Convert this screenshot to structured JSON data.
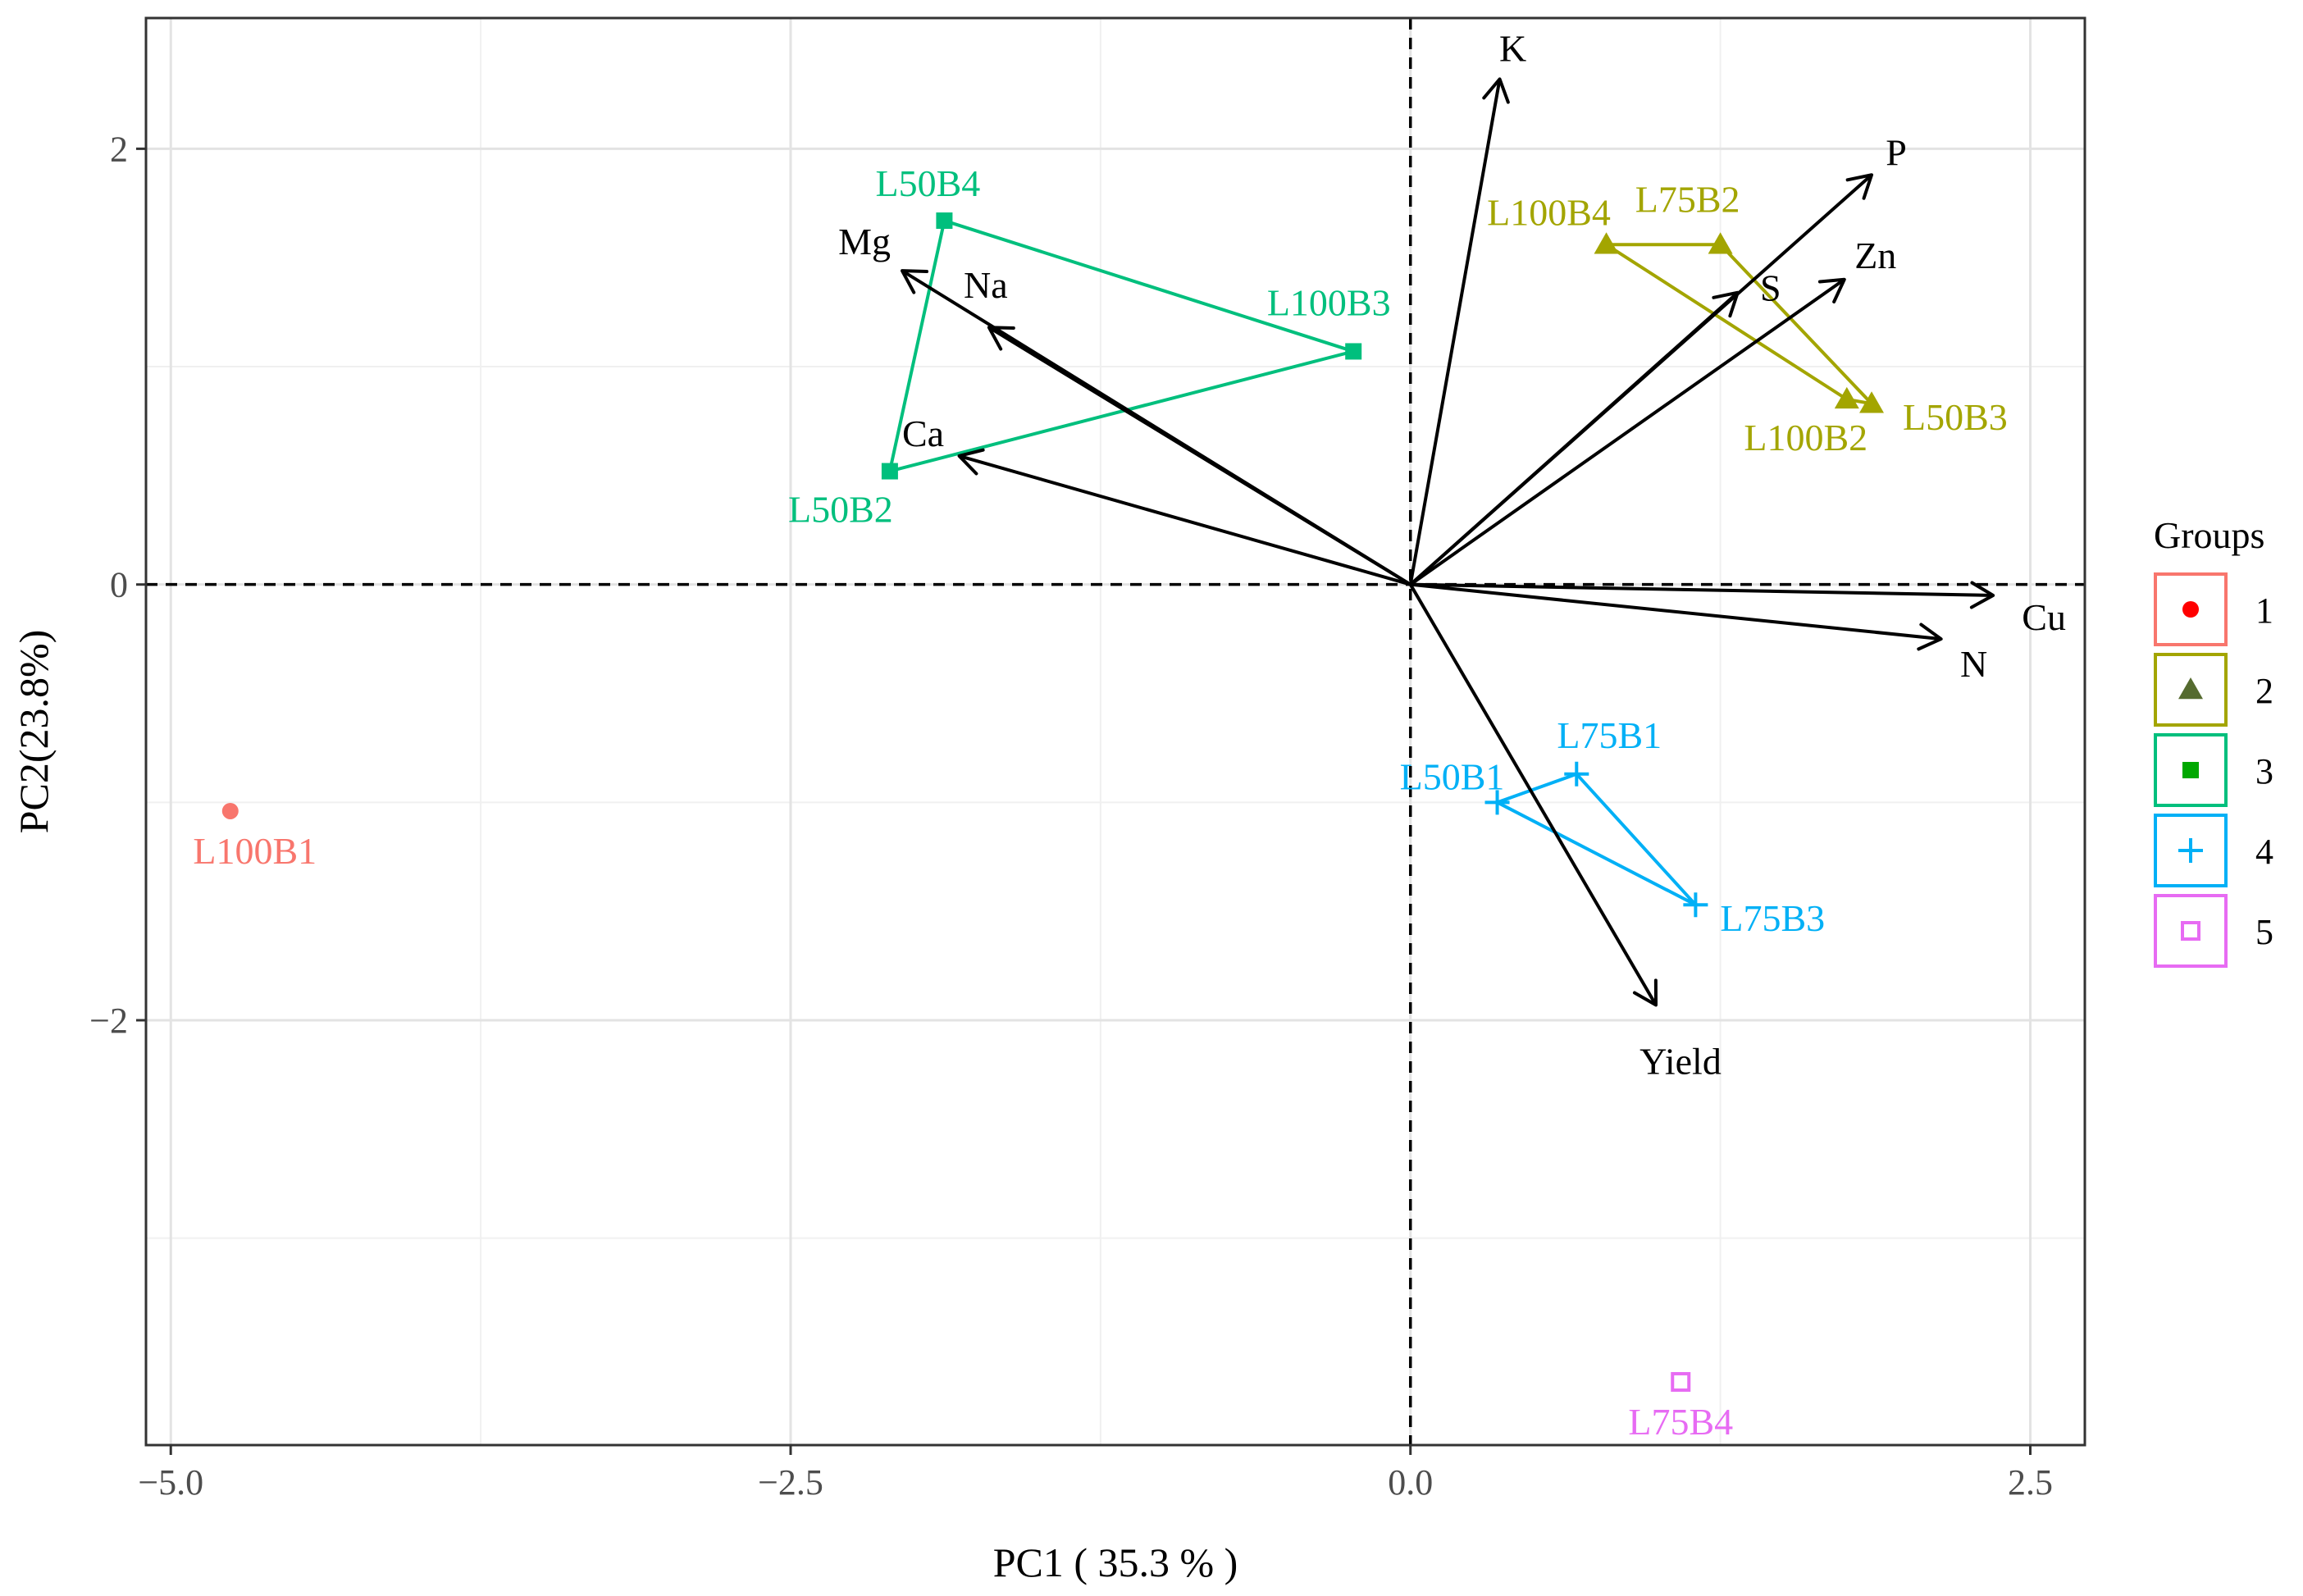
{
  "chart_data": {
    "type": "scatter",
    "subtype": "pca-biplot",
    "xlabel": "PC1 ( 35.3 % )",
    "ylabel": "PC2(23.8%)",
    "xlim": [
      -5.1,
      2.72
    ],
    "ylim": [
      -3.95,
      2.6
    ],
    "x_ticks": [
      -5.0,
      -2.5,
      0.0,
      2.5
    ],
    "x_tick_labels": [
      "−5.0",
      "−2.5",
      "0.0",
      "2.5"
    ],
    "y_ticks": [
      -2,
      0,
      2
    ],
    "y_tick_labels": [
      "−2",
      "0",
      "2"
    ],
    "grid": true,
    "reference_lines": {
      "x": 0,
      "y": 0,
      "style": "dashed"
    },
    "legend": {
      "title": "Groups",
      "position": "right",
      "entries": [
        {
          "label": "1",
          "shape": "circle",
          "marker_color": "#ff0000",
          "box_color": "#f8766d"
        },
        {
          "label": "2",
          "shape": "triangle",
          "marker_color": "#556b2f",
          "box_color": "#a3a500"
        },
        {
          "label": "3",
          "shape": "square",
          "marker_color": "#00a800",
          "box_color": "#00bf7d"
        },
        {
          "label": "4",
          "shape": "plus",
          "marker_color": "#00b0f6",
          "box_color": "#00b0f6"
        },
        {
          "label": "5",
          "shape": "open-square",
          "marker_color": "#e76bf3",
          "box_color": "#e76bf3"
        }
      ]
    },
    "groups": [
      {
        "name": "1",
        "color": "#f8766d",
        "shape": "circle",
        "hull": [],
        "points": [
          {
            "label": "L100B1",
            "x": -4.76,
            "y": -1.04
          }
        ]
      },
      {
        "name": "2",
        "color": "#a3a500",
        "shape": "triangle",
        "hull": [
          "L100B4",
          "L75B2",
          "L50B3",
          "L100B2"
        ],
        "points": [
          {
            "label": "L100B4",
            "x": 0.79,
            "y": 1.56
          },
          {
            "label": "L75B2",
            "x": 1.25,
            "y": 1.56
          },
          {
            "label": "L100B2",
            "x": 1.76,
            "y": 0.85
          },
          {
            "label": "L50B3",
            "x": 1.86,
            "y": 0.83
          }
        ]
      },
      {
        "name": "3",
        "color": "#00bf7d",
        "shape": "square",
        "hull": [
          "L50B4",
          "L100B3",
          "L50B2"
        ],
        "points": [
          {
            "label": "L50B4",
            "x": -1.88,
            "y": 1.67
          },
          {
            "label": "L100B3",
            "x": -0.23,
            "y": 1.07
          },
          {
            "label": "L50B2",
            "x": -2.1,
            "y": 0.52
          }
        ]
      },
      {
        "name": "4",
        "color": "#00b0f6",
        "shape": "plus",
        "hull": [
          "L50B1",
          "L75B1",
          "L75B3"
        ],
        "points": [
          {
            "label": "L50B1",
            "x": 0.35,
            "y": -1.0
          },
          {
            "label": "L75B1",
            "x": 0.67,
            "y": -0.87
          },
          {
            "label": "L75B3",
            "x": 1.15,
            "y": -1.47
          }
        ]
      },
      {
        "name": "5",
        "color": "#e76bf3",
        "shape": "open-square",
        "hull": [],
        "points": [
          {
            "label": "L75B4",
            "x": 1.09,
            "y": -3.66
          }
        ]
      }
    ],
    "loadings": [
      {
        "name": "K",
        "x": 0.36,
        "y": 2.32
      },
      {
        "name": "P",
        "x": 1.86,
        "y": 1.88
      },
      {
        "name": "Zn",
        "x": 1.75,
        "y": 1.4
      },
      {
        "name": "S",
        "x": 1.32,
        "y": 1.34
      },
      {
        "name": "Mg",
        "x": -2.05,
        "y": 1.44
      },
      {
        "name": "Na",
        "x": -1.7,
        "y": 1.18
      },
      {
        "name": "Ca",
        "x": -1.82,
        "y": 0.59
      },
      {
        "name": "Cu",
        "x": 2.35,
        "y": -0.05
      },
      {
        "name": "N",
        "x": 2.14,
        "y": -0.25
      },
      {
        "name": "Yield",
        "x": 0.99,
        "y": -1.93
      }
    ]
  }
}
